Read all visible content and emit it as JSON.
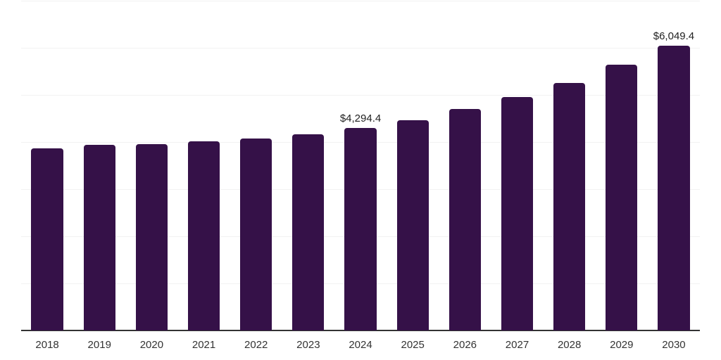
{
  "chart_data": {
    "type": "bar",
    "categories": [
      "2018",
      "2019",
      "2020",
      "2021",
      "2022",
      "2023",
      "2024",
      "2025",
      "2026",
      "2027",
      "2028",
      "2029",
      "2030"
    ],
    "values": [
      3860,
      3935,
      3950,
      4015,
      4075,
      4165,
      4294.4,
      4470,
      4695,
      4960,
      5260,
      5635,
      6049.4
    ],
    "data_labels": [
      "",
      "",
      "",
      "",
      "",
      "",
      "$4,294.4",
      "",
      "",
      "",
      "",
      "",
      "$6,049.4"
    ],
    "title": "",
    "xlabel": "",
    "ylabel": "",
    "ylim": [
      0,
      7000
    ],
    "grid_step": 1000,
    "grid": "horizontal",
    "legend": "none",
    "bar_color": "#351148",
    "note": "Only 2024 and 2030 values are labeled in the chart; other values estimated from gridlines (step 1000)."
  },
  "colors": {
    "background": "#ffffff",
    "gridline": "#f2f2f2",
    "axis_line": "#333333",
    "tick_text": "#333333",
    "value_text": "#222222"
  }
}
